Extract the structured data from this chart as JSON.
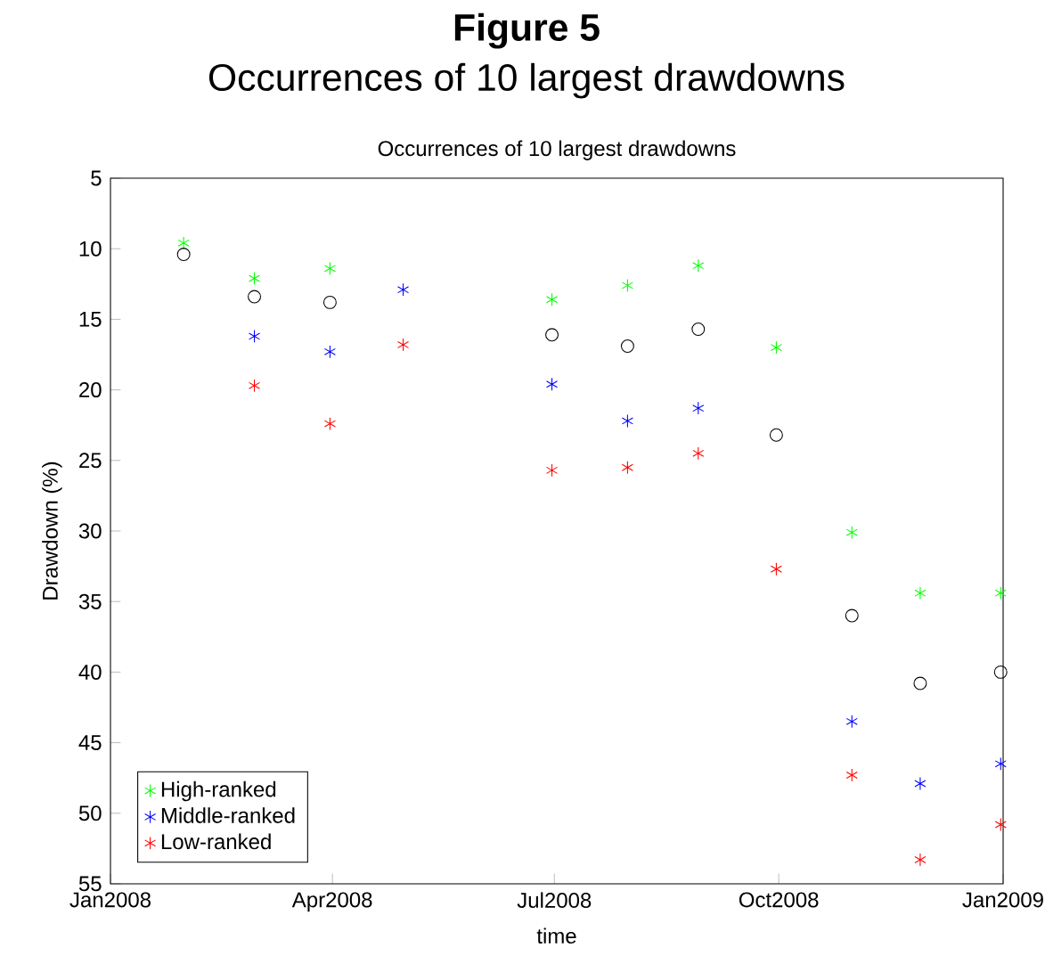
{
  "chart_data": {
    "type": "scatter",
    "title": "Figure 5",
    "subtitle": "Occurrences of 10 largest drawdowns",
    "annotations": [
      "Occurrences of 10 largest drawdowns"
    ],
    "xlabel": "time",
    "ylabel": "Drawdown (%)",
    "x": [
      "2008-01-31",
      "2008-02-29",
      "2008-03-31",
      "2008-04-30",
      "2008-06-30",
      "2008-07-31",
      "2008-08-29",
      "2008-09-30",
      "2008-10-31",
      "2008-11-28",
      "2008-12-31"
    ],
    "series": [
      {
        "name": "High-ranked",
        "color": "#00ff00",
        "marker": "cross",
        "values": [
          9.6,
          12.1,
          11.4,
          null,
          13.6,
          12.6,
          11.2,
          17.0,
          30.1,
          34.4,
          34.4
        ]
      },
      {
        "name": "Middle-ranked",
        "color": "#0000ff",
        "marker": "cross",
        "values": [
          null,
          16.2,
          17.3,
          12.9,
          19.6,
          22.2,
          21.3,
          null,
          43.5,
          47.9,
          46.5
        ]
      },
      {
        "name": "Low-ranked",
        "color": "#ff0000",
        "marker": "cross",
        "values": [
          null,
          19.7,
          22.4,
          16.8,
          25.7,
          25.5,
          24.5,
          32.7,
          47.3,
          53.3,
          50.8
        ]
      },
      {
        "color": "#000000",
        "marker": "circle",
        "values": [
          10.4,
          13.4,
          13.8,
          null,
          16.1,
          16.9,
          15.7,
          23.2,
          36.0,
          40.8,
          40.0
        ]
      }
    ],
    "xlim": [
      "2008-01-01",
      "2009-01-01"
    ],
    "xticks": [
      {
        "value": "2008-01-01",
        "label": "Jan2008"
      },
      {
        "value": "2008-04-01",
        "label": "Apr2008"
      },
      {
        "value": "2008-07-01",
        "label": "Jul2008"
      },
      {
        "value": "2008-10-01",
        "label": "Oct2008"
      },
      {
        "value": "2009-01-01",
        "label": "Jan2009"
      }
    ],
    "ylim": [
      55,
      5
    ],
    "yticks": [
      5,
      10,
      15,
      20,
      25,
      30,
      35,
      40,
      45,
      50,
      55
    ],
    "legend": "bottom left",
    "grid": false
  }
}
